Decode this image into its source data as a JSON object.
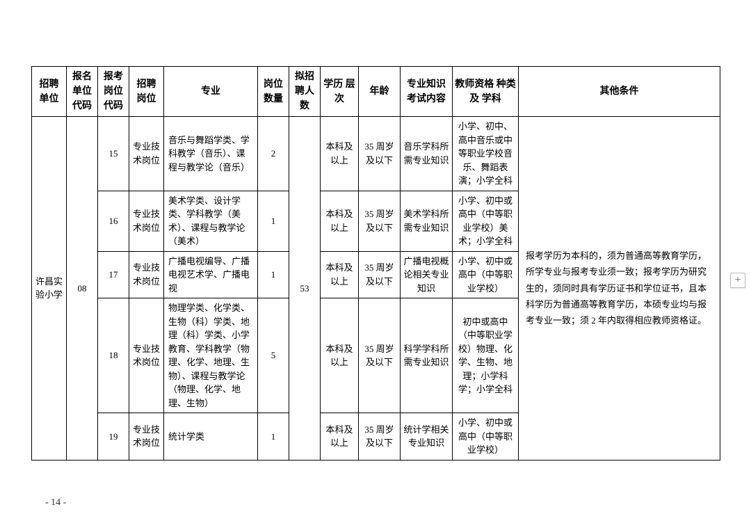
{
  "header": {
    "unit": "招聘\n单位",
    "unitCode": "报名\n单位\n代码",
    "postCode": "报考\n岗位\n代码",
    "post": "招聘\n岗位",
    "major": "专业",
    "count": "岗位\n数量",
    "total": "拟招\n聘人\n数",
    "edu": "学历\n层次",
    "age": "年龄",
    "knowledge": "专业知识\n考试内容",
    "cert": "教师资格\n种类及\n学科",
    "other": "其他条件"
  },
  "unitName": "许昌实验小学",
  "unitCode": "08",
  "totalCount": "53",
  "otherCondition": "报考学历为本科的，须为普通高等教育学历，所学专业与报考专业须一致；报考学历为研究生的，须同时具有学历证书和学位证书，且本科学历为普通高等教育学历，本硕专业均与报考专业一致；须 2 年内取得相应教师资格证。",
  "rows": [
    {
      "postCode": "15",
      "post": "专业技术岗位",
      "major": "音乐与舞蹈学类、学科教学（音乐）、课程与教学论（音乐）",
      "count": "2",
      "edu": "本科及以上",
      "age": "35 周岁及以下",
      "knowledge": "音乐学科所需专业知识",
      "cert": "小学、初中、高中音乐或中等职业学校音乐、舞蹈表演；小学全科"
    },
    {
      "postCode": "16",
      "post": "专业技术岗位",
      "major": "美术学类、设计学类、学科教学（美术）、课程与教学论（美术）",
      "count": "1",
      "edu": "本科及以上",
      "age": "35 周岁及以下",
      "knowledge": "美术学科所需专业知识",
      "cert": "小学、初中或高中（中等职业学校）美术；小学全科"
    },
    {
      "postCode": "17",
      "post": "专业技术岗位",
      "major": "广播电视编导、广播电视艺术学、广播电视",
      "count": "1",
      "edu": "本科及以上",
      "age": "35 周岁及以下",
      "knowledge": "广播电视概论相关专业知识",
      "cert": "小学、初中或高中（中等职业学校）"
    },
    {
      "postCode": "18",
      "post": "专业技术岗位",
      "major": "物理学类、化学类、生物（科）学类、地理（科）学类、小学教育、学科教学（物理、化学、地理、生物）、课程与教学论（物理、化学、地理、生物）",
      "count": "5",
      "edu": "本科及以上",
      "age": "35 周岁及以下",
      "knowledge": "科学学科所需专业知识",
      "cert": "初中或高中（中等职业学校）物理、化学、生物、地理；小学科学；小学全科"
    },
    {
      "postCode": "19",
      "post": "专业技术岗位",
      "major": "统计学类",
      "count": "1",
      "edu": "本科及以上",
      "age": "35 周岁及以下",
      "knowledge": "统计学相关专业知识",
      "cert": "小学、初中或高中（中等职业学校）"
    }
  ],
  "pageNumber": "- 14 -",
  "sideButton": "+"
}
